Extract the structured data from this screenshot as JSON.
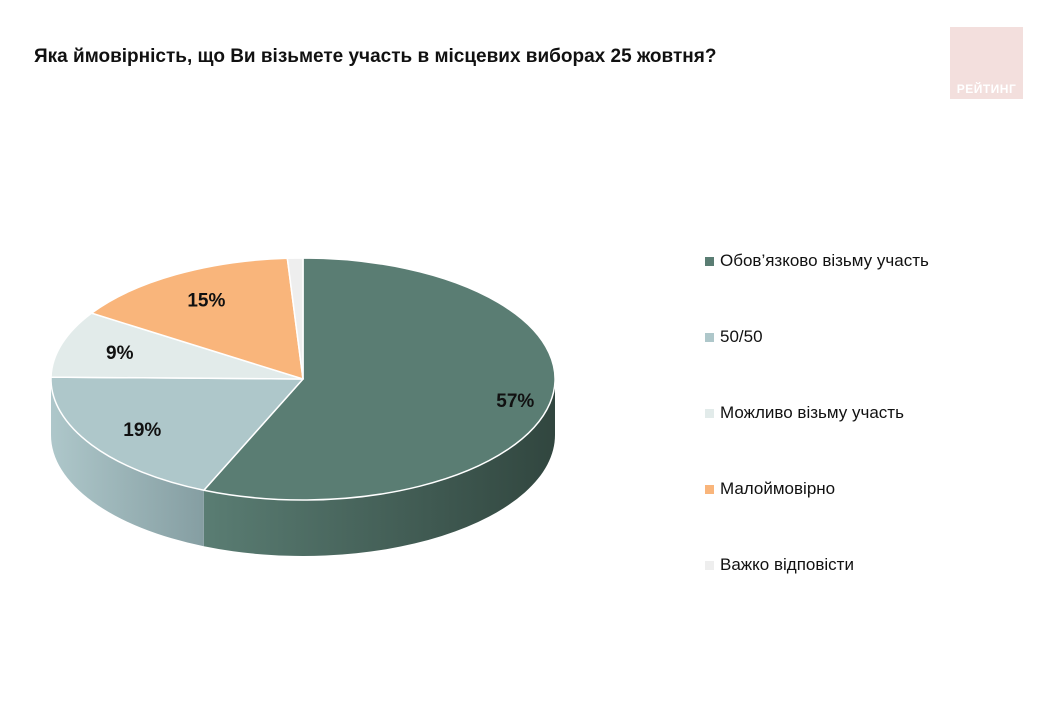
{
  "title": "Яка ймовірність, що Ви візьмете участь в місцевих виборах 25 жовтня?",
  "logo": {
    "text": "РЕЙТИНГ",
    "color": "#f3dfdd"
  },
  "chart_data": {
    "type": "pie",
    "style": "3d",
    "categories": [
      "Обов’язково візьму участь",
      "50/50",
      "Можливо візьму участь",
      "Малоймовірно",
      "Важко відповісти"
    ],
    "values": [
      57,
      19,
      9,
      15,
      1
    ],
    "data_labels": [
      "57%",
      "19%",
      "9%",
      "15%",
      ""
    ],
    "colors": [
      "#5a7d73",
      "#aec7ca",
      "#e2ebea",
      "#f9b57b",
      "#eeeeee"
    ],
    "side_colors": [
      "#31463f",
      "#859ea2",
      "#b9c4c3",
      "#cf9460",
      "#c8c8c8"
    ],
    "legend_position": "right"
  }
}
